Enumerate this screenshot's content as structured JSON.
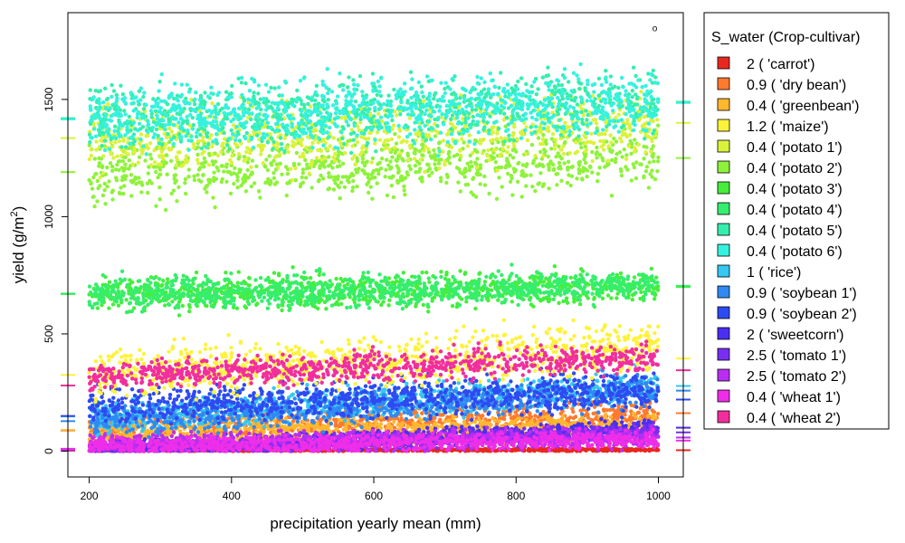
{
  "chart_data": {
    "type": "scatter",
    "xlabel": "precipitation yearly mean (mm)",
    "ylabel": "yield (g/",
    "ylabel_unit_base": "m",
    "ylabel_unit_exp": "2",
    "ylabel_close": ")",
    "xlim": [
      170,
      1035
    ],
    "ylim": [
      -110,
      1870
    ],
    "x_ticks": [
      200,
      400,
      600,
      800,
      1000
    ],
    "x_tick_labels": [
      "200",
      "400",
      "600",
      "800",
      "1000"
    ],
    "y_ticks": [
      0,
      500,
      1000,
      1500
    ],
    "y_tick_labels": [
      "0",
      "500",
      "1000",
      "1500"
    ],
    "legend_title": "S_water (Crop-cultivar)",
    "legend_position": "right",
    "series": [
      {
        "name": "2 ( 'carrot')",
        "color": "#e8281e",
        "x_range": [
          200,
          1000
        ],
        "y_start": 4,
        "y_end": 6,
        "spread": 6,
        "left_tick": 2,
        "right_tick": 4
      },
      {
        "name": "0.9 ( 'dry bean')",
        "color": "#ff7a2e",
        "x_range": [
          200,
          1000
        ],
        "y_start": 85,
        "y_end": 160,
        "spread": 70,
        "left_tick": 88,
        "right_tick": 162
      },
      {
        "name": "0.4 ( 'greenbean')",
        "color": "#ffb72e",
        "x_range": [
          200,
          1000
        ],
        "y_start": 80,
        "y_end": 100,
        "spread": 60,
        "left_tick": 90,
        "right_tick": 100
      },
      {
        "name": "1.2 ( 'maize')",
        "color": "#fff23a",
        "x_range": [
          200,
          1000
        ],
        "y_start": 330,
        "y_end": 450,
        "spread": 110,
        "left_tick": 325,
        "right_tick": 395
      },
      {
        "name": "0.4 ( 'potato 1')",
        "color": "#dbf23a",
        "x_range": [
          200,
          1000
        ],
        "y_start": 1330,
        "y_end": 1400,
        "spread": 150,
        "left_tick": 1335,
        "right_tick": 1400
      },
      {
        "name": "0.4 ( 'potato 2')",
        "color": "#8ef23a",
        "x_range": [
          200,
          1000
        ],
        "y_start": 1190,
        "y_end": 1250,
        "spread": 140,
        "left_tick": 1190,
        "right_tick": 1250
      },
      {
        "name": "0.4 ( 'potato 3')",
        "color": "#45ee3a",
        "x_range": [
          200,
          1000
        ],
        "y_start": 670,
        "y_end": 700,
        "spread": 75,
        "left_tick": 670,
        "right_tick": 700
      },
      {
        "name": "0.4 ( 'potato 4')",
        "color": "#35ee6e",
        "x_range": [
          200,
          1000
        ],
        "y_start": 670,
        "y_end": 705,
        "spread": 70,
        "left_tick": 672,
        "right_tick": 705
      },
      {
        "name": "0.4 ( 'potato 5')",
        "color": "#35eeae",
        "x_range": [
          200,
          1000
        ],
        "y_start": 1420,
        "y_end": 1490,
        "spread": 145,
        "left_tick": 1420,
        "right_tick": 1490
      },
      {
        "name": "0.4 ( 'potato 6')",
        "color": "#35f2e0",
        "x_range": [
          200,
          1000
        ],
        "y_start": 1420,
        "y_end": 1490,
        "spread": 145,
        "left_tick": 1415,
        "right_tick": 1485
      },
      {
        "name": "1 ( 'rice')",
        "color": "#35c8f2",
        "x_range": [
          200,
          1000
        ],
        "y_start": 140,
        "y_end": 280,
        "spread": 70,
        "left_tick": 148,
        "right_tick": 278
      },
      {
        "name": "0.9 ( 'soybean 1')",
        "color": "#2e8af2",
        "x_range": [
          200,
          1000
        ],
        "y_start": 130,
        "y_end": 260,
        "spread": 70,
        "left_tick": 128,
        "right_tick": 258
      },
      {
        "name": "0.9 ( 'soybean 2')",
        "color": "#2e4af2",
        "x_range": [
          200,
          1000
        ],
        "y_start": 190,
        "y_end": 260,
        "spread": 80,
        "left_tick": 150,
        "right_tick": 220
      },
      {
        "name": "2 ( 'sweetcorn')",
        "color": "#4a2ef2",
        "x_range": [
          200,
          1000
        ],
        "y_start": 5,
        "y_end": 100,
        "spread": 40,
        "left_tick": 5,
        "right_tick": 100
      },
      {
        "name": "2.5 ( 'tomato 1')",
        "color": "#7a2ef2",
        "x_range": [
          200,
          1000
        ],
        "y_start": 5,
        "y_end": 80,
        "spread": 40,
        "left_tick": 5,
        "right_tick": 80
      },
      {
        "name": "2.5 ( 'tomato 2')",
        "color": "#b92ef2",
        "x_range": [
          200,
          1000
        ],
        "y_start": 30,
        "y_end": 60,
        "spread": 45,
        "left_tick": 5,
        "right_tick": 58
      },
      {
        "name": "0.4 ( 'wheat 1')",
        "color": "#ee2ee8",
        "x_range": [
          200,
          1000
        ],
        "y_start": 20,
        "y_end": 50,
        "spread": 40,
        "left_tick": 10,
        "right_tick": 45
      },
      {
        "name": "0.4 ( 'wheat 2')",
        "color": "#f22e9e",
        "x_range": [
          200,
          1000
        ],
        "y_start": 320,
        "y_end": 400,
        "spread": 65,
        "left_tick": 280,
        "right_tick": 345
      }
    ],
    "annotations": [
      {
        "text": "o",
        "x": 995,
        "y": 1790
      }
    ],
    "grid": false
  }
}
